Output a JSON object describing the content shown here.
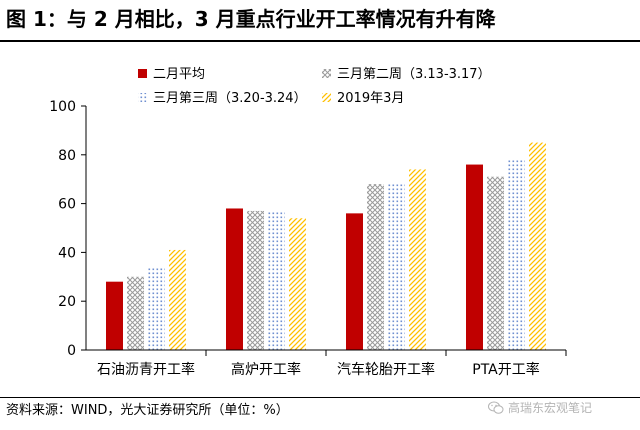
{
  "title": "图 1：与 2 月相比，3 月重点行业开工率情况有升有降",
  "source": "资料来源：WIND，光大证券研究所（单位：%）",
  "watermark": "高瑞东宏观笔记",
  "watermark_icon": "wechat-icon",
  "chart_data": {
    "type": "bar",
    "title": "",
    "xlabel": "",
    "ylabel": "",
    "ylim": [
      0,
      100
    ],
    "yticks": [
      0,
      20,
      40,
      60,
      80,
      100
    ],
    "grid": false,
    "legend_position": "top",
    "categories": [
      "石油沥青开工率",
      "高炉开工率",
      "汽车轮胎开工率",
      "PTA开工率"
    ],
    "series": [
      {
        "name": "二月平均",
        "values": [
          28,
          58,
          56,
          76
        ],
        "color": "#c00000",
        "pattern": "solid"
      },
      {
        "name": "三月第二周（3.13-3.17）",
        "values": [
          30,
          57,
          68,
          71
        ],
        "color": "#a6a6a6",
        "pattern": "crosshatch"
      },
      {
        "name": "三月第三周（3.20-3.24）",
        "values": [
          34,
          57,
          68,
          78
        ],
        "color": "#8faadc",
        "pattern": "dots"
      },
      {
        "name": "2019年3月",
        "values": [
          41,
          54,
          74,
          85
        ],
        "color": "#ffc000",
        "pattern": "diagonal"
      }
    ]
  }
}
